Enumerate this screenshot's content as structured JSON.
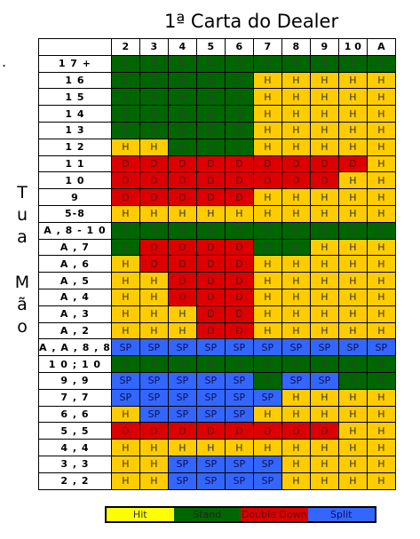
{
  "title": "1ª Carta do Dealer",
  "stray_mark": ".",
  "side_label_top": [
    "T",
    "u",
    "a"
  ],
  "side_label_bottom": [
    "M",
    "ã",
    "o"
  ],
  "columns": [
    "2",
    "3",
    "4",
    "5",
    "6",
    "7",
    "8",
    "9",
    "1 0",
    "A"
  ],
  "colors": {
    "H": "#ffcc00",
    "S": "#006600",
    "D": "#dd0000",
    "SP": "#3366ff"
  },
  "rows": [
    {
      "label": "1 7 +",
      "cells": [
        "S",
        "S",
        "S",
        "S",
        "S",
        "S",
        "S",
        "S",
        "S",
        "S"
      ]
    },
    {
      "label": "1 6",
      "cells": [
        "S",
        "S",
        "S",
        "S",
        "S",
        "H",
        "H",
        "H",
        "H",
        "H"
      ]
    },
    {
      "label": "1 5",
      "cells": [
        "S",
        "S",
        "S",
        "S",
        "S",
        "H",
        "H",
        "H",
        "H",
        "H"
      ]
    },
    {
      "label": "1 4",
      "cells": [
        "S",
        "S",
        "S",
        "S",
        "S",
        "H",
        "H",
        "H",
        "H",
        "H"
      ]
    },
    {
      "label": "1 3",
      "cells": [
        "S",
        "S",
        "S",
        "S",
        "S",
        "H",
        "H",
        "H",
        "H",
        "H"
      ]
    },
    {
      "label": "1 2",
      "cells": [
        "H",
        "H",
        "S",
        "S",
        "S",
        "H",
        "H",
        "H",
        "H",
        "H"
      ]
    },
    {
      "label": "1 1",
      "cells": [
        "D",
        "D",
        "D",
        "D",
        "D",
        "D",
        "D",
        "D",
        "D",
        "H"
      ]
    },
    {
      "label": "1 0",
      "cells": [
        "D",
        "D",
        "D",
        "D",
        "D",
        "D",
        "D",
        "D",
        "H",
        "H"
      ]
    },
    {
      "label": "9",
      "cells": [
        "D",
        "D",
        "D",
        "D",
        "D",
        "H",
        "H",
        "H",
        "H",
        "H"
      ]
    },
    {
      "label": "5-8",
      "cells": [
        "H",
        "H",
        "H",
        "H",
        "H",
        "H",
        "H",
        "H",
        "H",
        "H"
      ]
    },
    {
      "label": "A , 8 - 1 0",
      "cells": [
        "S",
        "S",
        "S",
        "S",
        "S",
        "S",
        "S",
        "S",
        "S",
        "S"
      ]
    },
    {
      "label": "A , 7",
      "cells": [
        "S",
        "D",
        "D",
        "D",
        "D",
        "S",
        "S",
        "H",
        "H",
        "H"
      ]
    },
    {
      "label": "A , 6",
      "cells": [
        "H",
        "D",
        "D",
        "D",
        "D",
        "H",
        "H",
        "H",
        "H",
        "H"
      ]
    },
    {
      "label": "A , 5",
      "cells": [
        "H",
        "H",
        "D",
        "D",
        "D",
        "H",
        "H",
        "H",
        "H",
        "H"
      ]
    },
    {
      "label": "A , 4",
      "cells": [
        "H",
        "H",
        "D",
        "D",
        "D",
        "H",
        "H",
        "H",
        "H",
        "H"
      ]
    },
    {
      "label": "A , 3",
      "cells": [
        "H",
        "H",
        "H",
        "D",
        "D",
        "H",
        "H",
        "H",
        "H",
        "H"
      ]
    },
    {
      "label": "A , 2",
      "cells": [
        "H",
        "H",
        "H",
        "D",
        "D",
        "H",
        "H",
        "H",
        "H",
        "H"
      ]
    },
    {
      "label": "A , A , 8 , 8",
      "cells": [
        "SP",
        "SP",
        "SP",
        "SP",
        "SP",
        "SP",
        "SP",
        "SP",
        "SP",
        "SP"
      ]
    },
    {
      "label": "1 0 ; 1 0",
      "cells": [
        "S",
        "S",
        "S",
        "S",
        "S",
        "S",
        "S",
        "S",
        "S",
        "S"
      ]
    },
    {
      "label": "9 , 9",
      "cells": [
        "SP",
        "SP",
        "SP",
        "SP",
        "SP",
        "S",
        "SP",
        "SP",
        "S",
        "S"
      ]
    },
    {
      "label": "7 , 7",
      "cells": [
        "SP",
        "SP",
        "SP",
        "SP",
        "SP",
        "SP",
        "H",
        "H",
        "H",
        "H"
      ]
    },
    {
      "label": "6 , 6",
      "cells": [
        "H",
        "SP",
        "SP",
        "SP",
        "SP",
        "H",
        "H",
        "H",
        "H",
        "H"
      ]
    },
    {
      "label": "5 , 5",
      "cells": [
        "D",
        "D",
        "D",
        "D",
        "D",
        "D",
        "D",
        "D",
        "H",
        "H"
      ]
    },
    {
      "label": "4 , 4",
      "cells": [
        "H",
        "H",
        "H",
        "H",
        "H",
        "H",
        "H",
        "H",
        "H",
        "H"
      ]
    },
    {
      "label": "3 , 3",
      "cells": [
        "H",
        "H",
        "SP",
        "SP",
        "SP",
        "SP",
        "H",
        "H",
        "H",
        "H"
      ]
    },
    {
      "label": "2 , 2",
      "cells": [
        "H",
        "H",
        "SP",
        "SP",
        "SP",
        "SP",
        "H",
        "H",
        "H",
        "H"
      ]
    }
  ],
  "legend": {
    "hit": "Hit",
    "stand": "Stand",
    "double": "Double Down",
    "split": "Split"
  }
}
